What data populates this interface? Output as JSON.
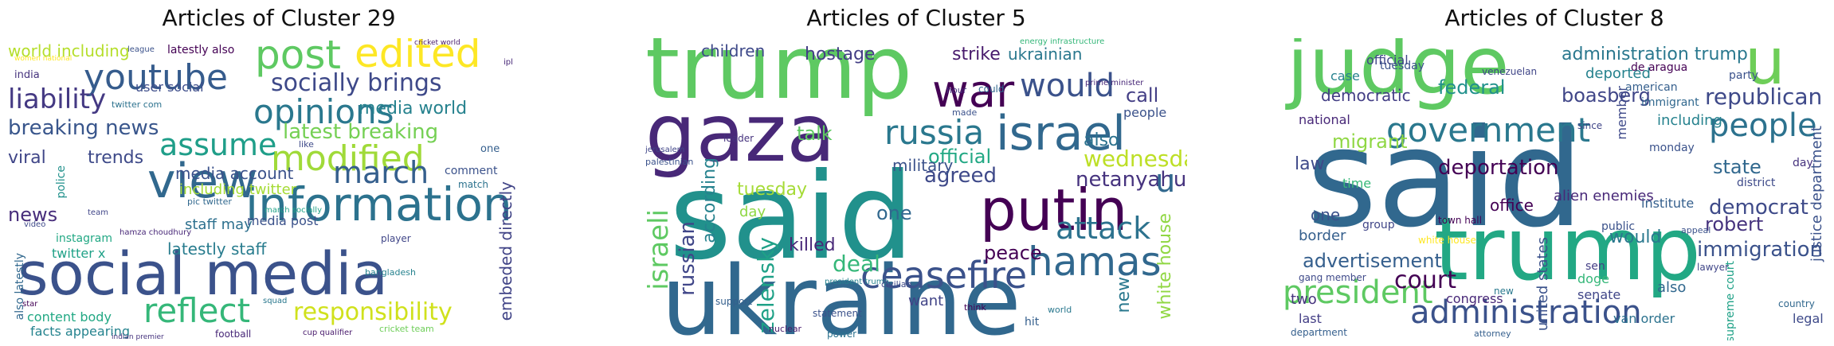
{
  "panels": [
    {
      "title": "Articles of Cluster 29",
      "words": [
        {
          "text": "social media",
          "color": "#3b528b"
        },
        {
          "text": "information",
          "color": "#2c728e"
        },
        {
          "text": "view",
          "color": "#31688e"
        },
        {
          "text": "youtube",
          "color": "#365c8d"
        },
        {
          "text": "opinions",
          "color": "#2a788e"
        },
        {
          "text": "post",
          "color": "#5ec962"
        },
        {
          "text": "edited",
          "color": "#fde725"
        },
        {
          "text": "modified",
          "color": "#a0da39"
        },
        {
          "text": "assume",
          "color": "#1f9e89"
        },
        {
          "text": "reflect",
          "color": "#35b779"
        },
        {
          "text": "march",
          "color": "#355f8d"
        },
        {
          "text": "responsibility",
          "color": "#d0e11c"
        },
        {
          "text": "liability",
          "color": "#443983"
        },
        {
          "text": "socially brings",
          "color": "#3e4989"
        },
        {
          "text": "breaking news",
          "color": "#39568c"
        },
        {
          "text": "latest breaking",
          "color": "#75d054"
        },
        {
          "text": "media world",
          "color": "#26828e"
        },
        {
          "text": "viral",
          "color": "#404688"
        },
        {
          "text": "trends",
          "color": "#3e4a89"
        },
        {
          "text": "news",
          "color": "#472d7b"
        },
        {
          "text": "media account",
          "color": "#3b528b"
        },
        {
          "text": "latestly staff",
          "color": "#287c8e"
        },
        {
          "text": "instagram",
          "color": "#22a884"
        },
        {
          "text": "including twitter",
          "color": "#a5db36"
        },
        {
          "text": "world including",
          "color": "#b5de2b"
        },
        {
          "text": "embeded directly",
          "color": "#414487"
        },
        {
          "text": "content body",
          "color": "#22a884"
        },
        {
          "text": "facts appearing",
          "color": "#25838e"
        },
        {
          "text": "twitter x",
          "color": "#1fa187"
        },
        {
          "text": "user social",
          "color": "#3d4d8a"
        },
        {
          "text": "staff may",
          "color": "#2d708e"
        },
        {
          "text": "media post",
          "color": "#3b528b"
        },
        {
          "text": "latestly also",
          "color": "#440154"
        },
        {
          "text": "india",
          "color": "#46337e"
        },
        {
          "text": "police",
          "color": "#21918c"
        },
        {
          "text": "also latestly",
          "color": "#31688e"
        },
        {
          "text": "cricket team",
          "color": "#6ece58"
        },
        {
          "text": "football",
          "color": "#482878"
        },
        {
          "text": "cup qualifier",
          "color": "#481a6c"
        },
        {
          "text": "comment",
          "color": "#3b528b"
        },
        {
          "text": "match",
          "color": "#2c728e"
        },
        {
          "text": "player",
          "color": "#404688"
        },
        {
          "text": "bangladesh",
          "color": "#26828e"
        },
        {
          "text": "women national",
          "color": "#fde725"
        },
        {
          "text": "hamza choudhury",
          "color": "#482878"
        },
        {
          "text": "pic twitter",
          "color": "#31688e"
        },
        {
          "text": "march socially",
          "color": "#1fa187"
        },
        {
          "text": "indian premier",
          "color": "#46337e"
        },
        {
          "text": "cricket world",
          "color": "#481a6c"
        },
        {
          "text": "video",
          "color": "#3e4989"
        },
        {
          "text": "one",
          "color": "#355f8d"
        },
        {
          "text": "ipl",
          "color": "#482878"
        },
        {
          "text": "league",
          "color": "#3b528b"
        },
        {
          "text": "squad",
          "color": "#2a788e"
        },
        {
          "text": "twitter com",
          "color": "#2c728e"
        },
        {
          "text": "like",
          "color": "#3e4a89"
        },
        {
          "text": "star",
          "color": "#440154"
        },
        {
          "text": "team",
          "color": "#404688"
        }
      ]
    },
    {
      "title": "Articles of Cluster 5",
      "words": [
        {
          "text": "trump",
          "color": "#5ec962"
        },
        {
          "text": "said",
          "color": "#21918c"
        },
        {
          "text": "ukraine",
          "color": "#31688e"
        },
        {
          "text": "gaza",
          "color": "#482878"
        },
        {
          "text": "putin",
          "color": "#440154"
        },
        {
          "text": "israel",
          "color": "#31688e"
        },
        {
          "text": "hamas",
          "color": "#31688e"
        },
        {
          "text": "war",
          "color": "#440154"
        },
        {
          "text": "russia",
          "color": "#2a788e"
        },
        {
          "text": "would",
          "color": "#3b528b"
        },
        {
          "text": "ceasefire",
          "color": "#3b528b"
        },
        {
          "text": "attack",
          "color": "#2c728e"
        },
        {
          "text": "wednesday",
          "color": "#bddf26"
        },
        {
          "text": "netanyahu",
          "color": "#46337e"
        },
        {
          "text": "white house",
          "color": "#90d743"
        },
        {
          "text": "zelensky",
          "color": "#1fa187"
        },
        {
          "text": "israeli",
          "color": "#5ec962"
        },
        {
          "text": "russian",
          "color": "#404688"
        },
        {
          "text": "according",
          "color": "#26828e"
        },
        {
          "text": "official",
          "color": "#22a884"
        },
        {
          "text": "agreed",
          "color": "#3e4989"
        },
        {
          "text": "military",
          "color": "#3b528b"
        },
        {
          "text": "killed",
          "color": "#482878"
        },
        {
          "text": "deal",
          "color": "#35b779"
        },
        {
          "text": "talk",
          "color": "#5ec962"
        },
        {
          "text": "tuesday",
          "color": "#a5db36"
        },
        {
          "text": "strike",
          "color": "#481a6c"
        },
        {
          "text": "ukrainian",
          "color": "#2a788e"
        },
        {
          "text": "hostage",
          "color": "#433e85"
        },
        {
          "text": "children",
          "color": "#3e4989"
        },
        {
          "text": "peace",
          "color": "#440154"
        },
        {
          "text": "also",
          "color": "#2c728e"
        },
        {
          "text": "call",
          "color": "#433e85"
        },
        {
          "text": "people",
          "color": "#3b528b"
        },
        {
          "text": "one",
          "color": "#31688e"
        },
        {
          "text": "want",
          "color": "#414487"
        },
        {
          "text": "day",
          "color": "#8fd744"
        },
        {
          "text": "new",
          "color": "#2a788e"
        },
        {
          "text": "u",
          "color": "#31688e"
        },
        {
          "text": "energy infrastructure",
          "color": "#35b779"
        },
        {
          "text": "prime minister",
          "color": "#482878"
        },
        {
          "text": "president trump",
          "color": "#26828e"
        },
        {
          "text": "palestinian",
          "color": "#3b528b"
        },
        {
          "text": "leader",
          "color": "#46337e"
        },
        {
          "text": "jerusalem",
          "color": "#404688"
        },
        {
          "text": "support",
          "color": "#355f8d"
        },
        {
          "text": "statement",
          "color": "#3b528b"
        },
        {
          "text": "power",
          "color": "#2c728e"
        },
        {
          "text": "nuclear",
          "color": "#481a6c"
        },
        {
          "text": "civilian",
          "color": "#3e4a89"
        },
        {
          "text": "world",
          "color": "#2a788e"
        },
        {
          "text": "think",
          "color": "#440154"
        },
        {
          "text": "hit",
          "color": "#355f8d"
        },
        {
          "text": "hour",
          "color": "#46337e"
        },
        {
          "text": "made",
          "color": "#3b528b"
        },
        {
          "text": "could",
          "color": "#31688e"
        }
      ]
    },
    {
      "title": "Articles of Cluster 8",
      "words": [
        {
          "text": "said",
          "color": "#31688e"
        },
        {
          "text": "trump",
          "color": "#22a884"
        },
        {
          "text": "judge",
          "color": "#5ec962"
        },
        {
          "text": "u",
          "color": "#6ece58"
        },
        {
          "text": "administration",
          "color": "#3b528b"
        },
        {
          "text": "president",
          "color": "#5ec962"
        },
        {
          "text": "government",
          "color": "#2a788e"
        },
        {
          "text": "people",
          "color": "#2c728e"
        },
        {
          "text": "boasberg",
          "color": "#404688"
        },
        {
          "text": "deportation",
          "color": "#440154"
        },
        {
          "text": "republican",
          "color": "#3e4989"
        },
        {
          "text": "court",
          "color": "#440154"
        },
        {
          "text": "advertisement",
          "color": "#355f8d"
        },
        {
          "text": "federal",
          "color": "#21918c"
        },
        {
          "text": "migrant",
          "color": "#8fd744"
        },
        {
          "text": "democrat",
          "color": "#3e4a89"
        },
        {
          "text": "immigration",
          "color": "#3b528b"
        },
        {
          "text": "state",
          "color": "#31688e"
        },
        {
          "text": "robert",
          "color": "#46337e"
        },
        {
          "text": "justice department",
          "color": "#3b528b"
        },
        {
          "text": "alien enemies",
          "color": "#482878"
        },
        {
          "text": "deported",
          "color": "#26828e"
        },
        {
          "text": "democratic",
          "color": "#433e85"
        },
        {
          "text": "official",
          "color": "#404688"
        },
        {
          "text": "administration trump",
          "color": "#2a788e"
        },
        {
          "text": "office",
          "color": "#440154"
        },
        {
          "text": "would",
          "color": "#2a788e"
        },
        {
          "text": "law",
          "color": "#3e4989"
        },
        {
          "text": "border",
          "color": "#355f8d"
        },
        {
          "text": "one",
          "color": "#3b528b"
        },
        {
          "text": "united states",
          "color": "#3b528b"
        },
        {
          "text": "congress",
          "color": "#482878"
        },
        {
          "text": "two",
          "color": "#46337e"
        },
        {
          "text": "senate",
          "color": "#404688"
        },
        {
          "text": "doge",
          "color": "#35b779"
        },
        {
          "text": "legal",
          "color": "#3e4a89"
        },
        {
          "text": "van order",
          "color": "#2c728e"
        },
        {
          "text": "also",
          "color": "#31688e"
        },
        {
          "text": "last",
          "color": "#433e85"
        },
        {
          "text": "department",
          "color": "#355f8d"
        },
        {
          "text": "supreme court",
          "color": "#1fa187"
        },
        {
          "text": "venezuelan",
          "color": "#404688"
        },
        {
          "text": "tuesday",
          "color": "#3b528b"
        },
        {
          "text": "national",
          "color": "#482878"
        },
        {
          "text": "member",
          "color": "#3e4989"
        },
        {
          "text": "including",
          "color": "#26828e"
        },
        {
          "text": "party",
          "color": "#3b528b"
        },
        {
          "text": "american",
          "color": "#355f8d"
        },
        {
          "text": "immigrant",
          "color": "#31688e"
        },
        {
          "text": "de aragua",
          "color": "#440154"
        },
        {
          "text": "since",
          "color": "#404688"
        },
        {
          "text": "district",
          "color": "#3e4a89"
        },
        {
          "text": "day",
          "color": "#46337e"
        },
        {
          "text": "time",
          "color": "#35b779"
        },
        {
          "text": "white house",
          "color": "#fde725"
        },
        {
          "text": "public",
          "color": "#3b528b"
        },
        {
          "text": "attorney",
          "color": "#355f8d"
        },
        {
          "text": "country",
          "color": "#31688e"
        },
        {
          "text": "group",
          "color": "#404688"
        },
        {
          "text": "new",
          "color": "#2a788e"
        },
        {
          "text": "monday",
          "color": "#3b528b"
        },
        {
          "text": "case",
          "color": "#26828e"
        },
        {
          "text": "town hall",
          "color": "#440154"
        },
        {
          "text": "gang member",
          "color": "#3e4989"
        },
        {
          "text": "sen",
          "color": "#433e85"
        },
        {
          "text": "institute",
          "color": "#355f8d"
        },
        {
          "text": "lawyer",
          "color": "#404688"
        },
        {
          "text": "appeal",
          "color": "#3b528b"
        }
      ]
    }
  ]
}
